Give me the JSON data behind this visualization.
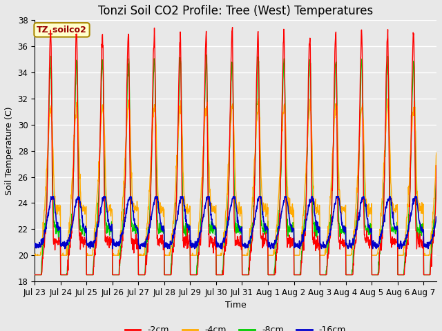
{
  "title": "Tonzi Soil CO2 Profile: Tree (West) Temperatures",
  "xlabel": "Time",
  "ylabel": "Soil Temperature (C)",
  "ylim": [
    18,
    38
  ],
  "yticks": [
    18,
    20,
    22,
    24,
    26,
    28,
    30,
    32,
    34,
    36,
    38
  ],
  "n_days": 15.5,
  "x_tick_labels": [
    "Jul 23",
    "Jul 24",
    "Jul 25",
    "Jul 26",
    "Jul 27",
    "Jul 28",
    "Jul 29",
    "Jul 30",
    "Jul 31",
    "Aug 1",
    "Aug 2",
    "Aug 3",
    "Aug 4",
    "Aug 5",
    "Aug 6",
    "Aug 7"
  ],
  "legend_labels": [
    "-2cm",
    "-4cm",
    "-8cm",
    "-16cm"
  ],
  "legend_colors": [
    "#ff0000",
    "#ffaa00",
    "#00cc00",
    "#0000cc"
  ],
  "bg_color": "#e8e8e8",
  "annotation_text": "TZ_soilco2",
  "annotation_bg": "#ffffcc",
  "annotation_border": "#aa8800",
  "annotation_color": "#990000",
  "grid_color": "#ffffff",
  "title_fontsize": 12,
  "label_fontsize": 9,
  "tick_fontsize": 8.5
}
